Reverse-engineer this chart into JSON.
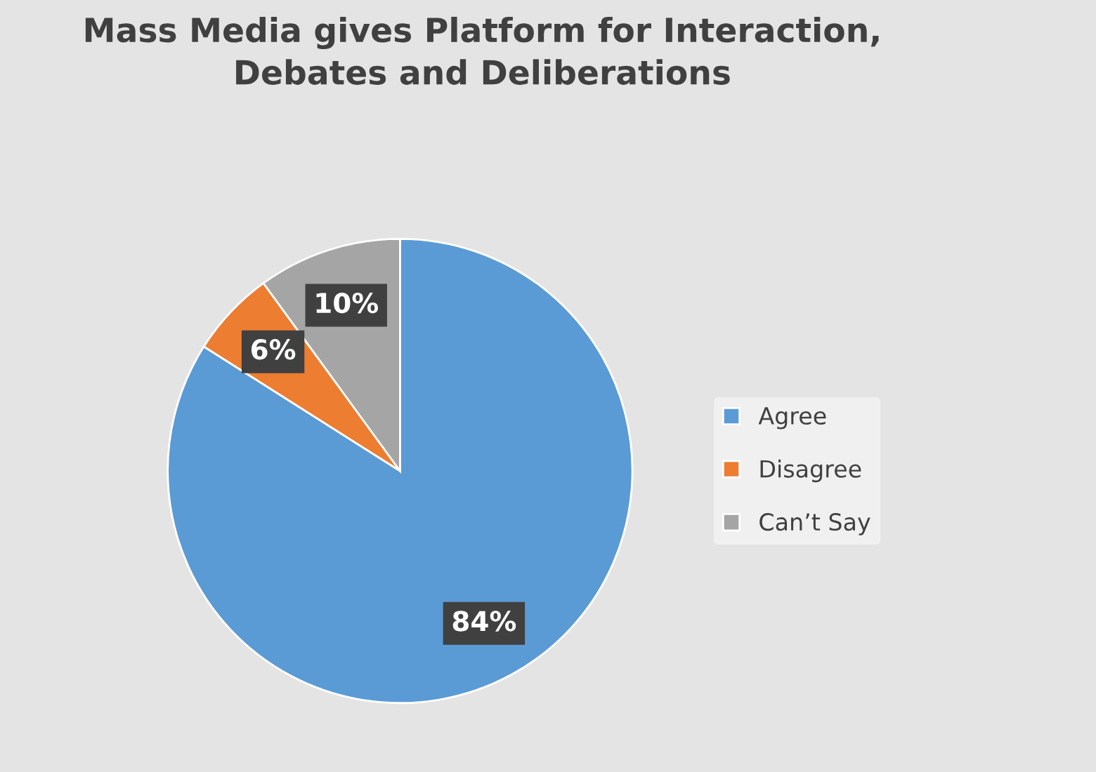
{
  "chart_data": {
    "type": "pie",
    "title": "Mass Media gives Platform for Interaction,\nDebates and Deliberations",
    "categories": [
      "Agree",
      "Disagree",
      "Can’t Say"
    ],
    "values": [
      84,
      6,
      10
    ],
    "colors": [
      "#5b9bd5",
      "#ed7d31",
      "#a5a5a5"
    ],
    "value_labels": [
      "84%",
      "6%",
      "10%"
    ],
    "legend": "right"
  }
}
